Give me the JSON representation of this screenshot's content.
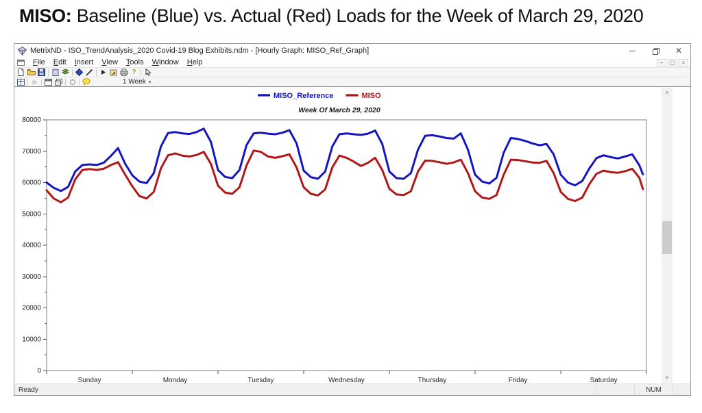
{
  "slide": {
    "title_bold": "MISO:",
    "title_rest": " Baseline (Blue) vs. Actual (Red) Loads for the Week of March 29, 2020"
  },
  "window": {
    "title": "MetrixND - ISO_TrendAnalysis_2020 Covid-19 Blog Exhibits.ndm - [Hourly Graph: MISO_Ref_Graph]"
  },
  "menu": {
    "items": [
      "File",
      "Edit",
      "Insert",
      "View",
      "Tools",
      "Window",
      "Help"
    ]
  },
  "toolbar": {
    "zoom_selector": "1 Week",
    "help_glyph": "?"
  },
  "status": {
    "left": "Ready",
    "num": "NUM"
  },
  "chart_data": {
    "type": "line",
    "title": "Week Of March 29, 2020",
    "x_day_labels": [
      "Sunday",
      "Monday",
      "Tuesday",
      "Wednesday",
      "Thursday",
      "Friday",
      "Saturday"
    ],
    "x_max": 168,
    "ylim": [
      0,
      80000
    ],
    "ytick_step": 10000,
    "ytick_minor": 5000,
    "grid": false,
    "legend_position": "top-center",
    "x_hours": [
      0,
      2,
      4,
      6,
      8,
      10,
      12,
      14,
      16,
      18,
      20,
      22,
      24,
      26,
      28,
      30,
      32,
      34,
      36,
      38,
      40,
      42,
      44,
      46,
      48,
      50,
      52,
      54,
      56,
      58,
      60,
      62,
      64,
      66,
      68,
      70,
      72,
      74,
      76,
      78,
      80,
      82,
      84,
      86,
      88,
      90,
      92,
      94,
      96,
      98,
      100,
      102,
      104,
      106,
      108,
      110,
      112,
      114,
      116,
      118,
      120,
      122,
      124,
      126,
      128,
      130,
      132,
      134,
      136,
      138,
      140,
      142,
      144,
      146,
      148,
      150,
      152,
      154,
      156,
      158,
      160,
      162,
      164,
      166,
      167
    ],
    "series": [
      {
        "name": "MISO_Reference",
        "color": "#1515c0",
        "values": [
          60000,
          58300,
          57300,
          58600,
          63500,
          65600,
          65800,
          65600,
          66300,
          68500,
          71000,
          66000,
          62300,
          60300,
          59800,
          63000,
          71500,
          75800,
          76100,
          75700,
          75500,
          76100,
          77200,
          73000,
          64000,
          61800,
          61400,
          64000,
          72000,
          75700,
          75900,
          75600,
          75400,
          75900,
          76700,
          72500,
          63800,
          61700,
          61200,
          63500,
          71500,
          75400,
          75700,
          75400,
          75200,
          75600,
          76600,
          72300,
          63500,
          61400,
          61200,
          63000,
          70500,
          74900,
          75100,
          74700,
          74200,
          74000,
          75700,
          70500,
          62500,
          60300,
          59700,
          61500,
          69500,
          74200,
          73900,
          73300,
          72500,
          71900,
          72300,
          69000,
          62500,
          60000,
          59100,
          60500,
          64500,
          67800,
          68700,
          68100,
          67700,
          68300,
          69000,
          65500,
          62600
        ]
      },
      {
        "name": "MISO",
        "color": "#b01818",
        "values": [
          57500,
          54900,
          53700,
          55200,
          61000,
          64000,
          64300,
          64000,
          64400,
          65600,
          66500,
          62500,
          58800,
          55700,
          54900,
          57000,
          64500,
          68700,
          69300,
          68600,
          68300,
          68800,
          69800,
          66000,
          59000,
          56800,
          56400,
          58500,
          65500,
          70200,
          69800,
          68300,
          67900,
          68400,
          69000,
          64800,
          58500,
          56400,
          55900,
          57800,
          64800,
          68600,
          67900,
          66700,
          65300,
          66300,
          67900,
          64000,
          58000,
          56200,
          56000,
          57200,
          63500,
          67000,
          66900,
          66500,
          66000,
          66400,
          67300,
          63000,
          57200,
          55200,
          54800,
          56000,
          62500,
          67300,
          67200,
          66800,
          66400,
          66300,
          66900,
          63000,
          57000,
          54800,
          54100,
          55200,
          59500,
          62800,
          63800,
          63300,
          63100,
          63600,
          64400,
          61500,
          57900
        ]
      }
    ]
  }
}
